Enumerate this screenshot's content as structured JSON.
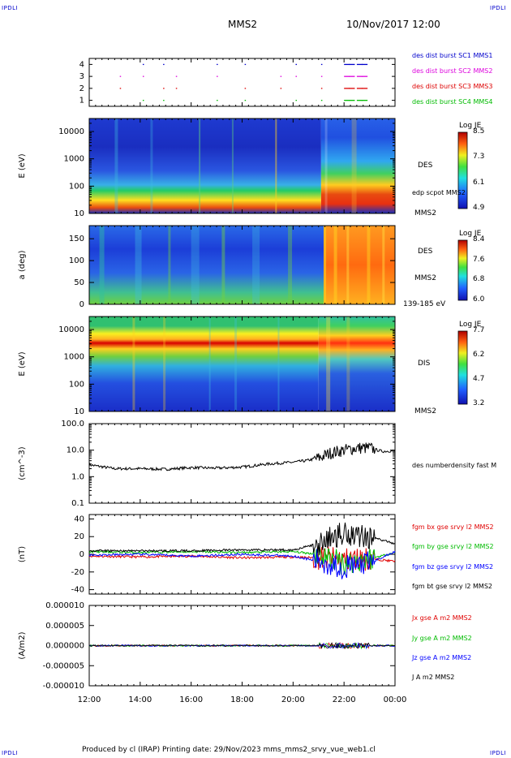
{
  "header": {
    "corner_tl": "IPDLI",
    "corner_tr": "IPDLI",
    "corner_bl": "IPDLI",
    "corner_br": "IPDLI",
    "spacecraft": "MMS2",
    "datetime": "10/Nov/2017 12:00"
  },
  "footer": {
    "text": "Produced by cl (IRAP)   Printing date: 29/Nov/2023   mms_mms2_srvy_vue_web1.cl"
  },
  "colors": {
    "red": "#e00000",
    "green": "#00bb00",
    "blue": "#0000ff",
    "magenta": "#dd00dd",
    "black": "#000000",
    "corner": "#0000cc"
  },
  "chart_data": [
    {
      "type": "scatter",
      "title": "",
      "ylabel": "",
      "yticks": [
        "1",
        "2",
        "3",
        "4"
      ],
      "ylim": [
        0.5,
        4.5
      ],
      "series": [
        {
          "name": "des dist burst SC1 MMS1",
          "color": "#0000cc",
          "row": 4
        },
        {
          "name": "des dist burst SC2 MMS2",
          "color": "#dd00dd",
          "row": 3
        },
        {
          "name": "des dist burst SC3 MMS3",
          "color": "#dd0000",
          "row": 2
        },
        {
          "name": "des dist burst SC4 MMS4",
          "color": "#00bb00",
          "row": 1
        }
      ]
    },
    {
      "type": "heatmap",
      "ylabel": "E (eV)",
      "yticks": [
        "10",
        "100",
        "1000",
        "10000"
      ],
      "ylim": [
        10,
        30000
      ],
      "yscale": "log",
      "instrument": "DES",
      "side_note": "edp scpot MMS2",
      "side_sc": "MMS2",
      "colorbar": {
        "label": "Log JE",
        "ticks": [
          "8.5",
          "7.3",
          "6.1",
          "4.9"
        ],
        "range": [
          4.9,
          8.5
        ]
      }
    },
    {
      "type": "heatmap",
      "ylabel": "a (deg)",
      "yticks": [
        "0",
        "50",
        "100",
        "150"
      ],
      "ylim": [
        0,
        180
      ],
      "instrument": "DES",
      "side_sc": "MMS2",
      "side_note": "139-185 eV",
      "colorbar": {
        "label": "Log JE",
        "ticks": [
          "8.4",
          "7.6",
          "6.8",
          "6.0"
        ],
        "range": [
          6.0,
          8.4
        ]
      }
    },
    {
      "type": "heatmap",
      "ylabel": "E (eV)",
      "yticks": [
        "10",
        "100",
        "1000",
        "10000"
      ],
      "ylim": [
        10,
        30000
      ],
      "yscale": "log",
      "instrument": "DIS",
      "side_sc": "MMS2",
      "colorbar": {
        "label": "Log JE",
        "ticks": [
          "7.7",
          "6.2",
          "4.7",
          "3.2"
        ],
        "range": [
          3.2,
          7.7
        ]
      }
    },
    {
      "type": "line",
      "ylabel": "(cm^-3)",
      "yticks": [
        "0.1",
        "1.0",
        "10.0",
        "100.0"
      ],
      "ylim": [
        0.1,
        100
      ],
      "yscale": "log",
      "series": [
        {
          "name": "des numberdensity fast M",
          "color": "#000000",
          "x": [
            "12:00",
            "13:00",
            "14:00",
            "15:00",
            "16:00",
            "17:00",
            "18:00",
            "19:00",
            "20:00",
            "20:30",
            "21:00",
            "21:30",
            "22:00",
            "22:30",
            "23:00",
            "23:30",
            "00:00"
          ],
          "values": [
            2.8,
            2.0,
            2.0,
            1.9,
            2.2,
            2.1,
            2.3,
            3.0,
            3.5,
            4.0,
            5.0,
            8.0,
            10.0,
            12.0,
            12.0,
            9.0,
            9.5
          ]
        }
      ]
    },
    {
      "type": "line",
      "ylabel": "(nT)",
      "yticks": [
        "-40",
        "-20",
        "0",
        "20",
        "40"
      ],
      "ylim": [
        -45,
        45
      ],
      "series": [
        {
          "name": "fgm bx gse srvy l2 MMS2",
          "color": "#e00000",
          "x": [
            "12:00",
            "14:00",
            "16:00",
            "18:00",
            "20:00",
            "21:00",
            "22:00",
            "23:00",
            "00:00"
          ],
          "values": [
            -2,
            -3,
            -2,
            -4,
            -3,
            -4,
            -6,
            -5,
            -8
          ]
        },
        {
          "name": "fgm by gse srvy l2 MMS2",
          "color": "#00bb00",
          "x": [
            "12:00",
            "14:00",
            "16:00",
            "18:00",
            "20:00",
            "21:00",
            "22:00",
            "23:00",
            "00:00"
          ],
          "values": [
            3,
            2,
            3,
            2,
            3,
            0,
            -10,
            -5,
            2
          ]
        },
        {
          "name": "fgm bz gse srvy l2 MMS2",
          "color": "#0000ff",
          "x": [
            "12:00",
            "14:00",
            "16:00",
            "18:00",
            "20:00",
            "21:00",
            "22:00",
            "23:00",
            "00:00"
          ],
          "values": [
            -1,
            0,
            -2,
            0,
            -2,
            -8,
            -15,
            -10,
            3
          ]
        },
        {
          "name": "fgm bt gse srvy l2 MMS2",
          "color": "#000000",
          "x": [
            "12:00",
            "14:00",
            "16:00",
            "18:00",
            "20:00",
            "21:00",
            "22:00",
            "23:00",
            "00:00"
          ],
          "values": [
            4,
            4,
            4,
            5,
            5,
            12,
            25,
            20,
            12
          ]
        }
      ]
    },
    {
      "type": "line",
      "ylabel": "(A/m2)",
      "yticks": [
        "-0.000010",
        "-0.000005",
        "0.000000",
        "0.000005",
        "0.000010"
      ],
      "ylim": [
        -1e-05,
        1e-05
      ],
      "series": [
        {
          "name": "Jx gse A m2 MMS2",
          "color": "#e00000"
        },
        {
          "name": "Jy gse A m2 MMS2",
          "color": "#00bb00"
        },
        {
          "name": "Jz gse A m2 MMS2",
          "color": "#0000ff"
        },
        {
          "name": "J A m2 MMS2",
          "color": "#000000"
        }
      ]
    }
  ],
  "xaxis": {
    "ticks": [
      "12:00",
      "14:00",
      "16:00",
      "18:00",
      "20:00",
      "22:00",
      "00:00"
    ]
  }
}
